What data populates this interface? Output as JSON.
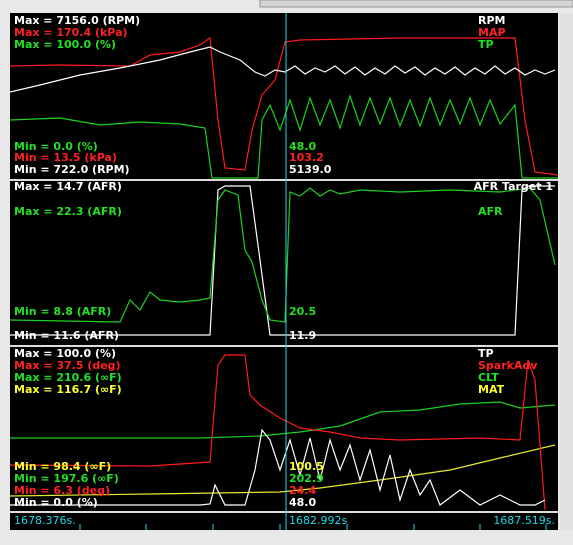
{
  "panels": [
    {
      "right_labels": [
        "RPM",
        "MAP",
        "TP"
      ],
      "max_labels": [
        "Max = 7156.0 (RPM)",
        "Max = 170.4 (kPa)",
        "Max = 100.0 (%)"
      ],
      "min_labels": [
        "Min = 0.0 (%)",
        "Min = 13.5 (kPa)",
        "Min = 722.0 (RPM)"
      ],
      "cursor_values": [
        "48.0",
        "103.2",
        "5139.0"
      ]
    },
    {
      "right_labels": [
        "AFR Target 1",
        "AFR"
      ],
      "max_labels": [
        "Max = 14.7 (AFR)",
        "Max = 22.3 (AFR)"
      ],
      "min_labels": [
        "Min = 8.8 (AFR)",
        "Min = 11.6 (AFR)"
      ],
      "cursor_values": [
        "20.5",
        "11.9"
      ]
    },
    {
      "right_labels": [
        "TP",
        "SparkAdv",
        "CLT",
        "MAT"
      ],
      "max_labels": [
        "Max = 100.0 (%)",
        "Max = 37.5 (deg)",
        "Max = 210.6 (∞F)",
        "Max = 116.7 (∞F)"
      ],
      "min_labels": [
        "Min = 98.4 (∞F)",
        "Min = 197.6 (∞F)",
        "Min = 6.3 (deg)",
        "Min = 0.0 (%)"
      ],
      "cursor_values": [
        "100.5",
        "202.9",
        "24.4",
        "48.0"
      ]
    }
  ],
  "timeline": [
    "1678.376s.",
    "1682.992s",
    "1687.519s."
  ]
}
